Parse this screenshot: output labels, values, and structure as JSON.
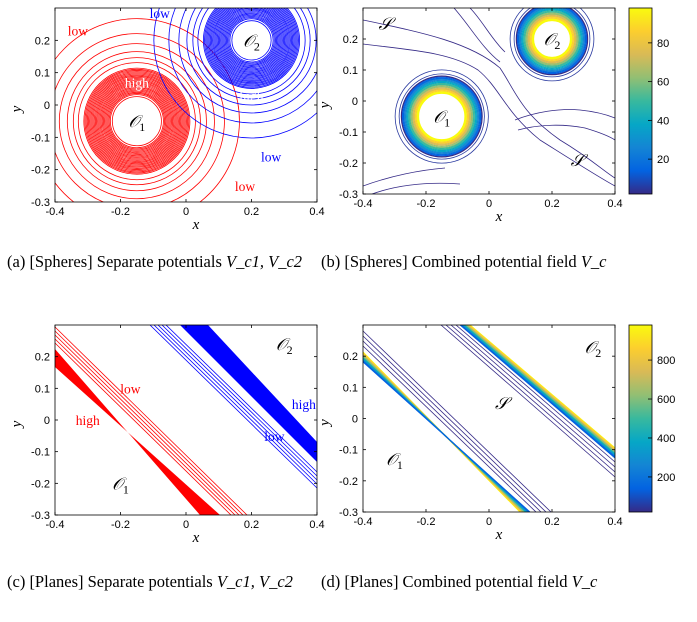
{
  "colors": {
    "red": "#ff0000",
    "blue": "#0000ff"
  },
  "captions": [
    {
      "id": "a",
      "text": "(a) [Spheres] Separate potentials ",
      "math": "V_c1, V_c2"
    },
    {
      "id": "b",
      "text": "(b) [Spheres] Combined potential field ",
      "math": "V_c"
    },
    {
      "id": "c",
      "text": "(c) [Planes] Separate potentials ",
      "math": "V_c1, V_c2"
    },
    {
      "id": "d",
      "text": "(d) [Planes] Combined potential field ",
      "math": "V_c"
    }
  ],
  "chart_data": [
    {
      "id": "a",
      "type": "contour",
      "xlabel": "x",
      "ylabel": "y",
      "xlim": [
        -0.4,
        0.4
      ],
      "ylim": [
        -0.3,
        0.3
      ],
      "xticks": [
        "-0.4",
        "-0.2",
        "0",
        "0.2",
        "0.4"
      ],
      "yticks": [
        "0.2",
        "0.1",
        "0",
        "-0.1",
        "-0.2",
        "-0.3"
      ],
      "series": [
        {
          "name": "O1",
          "center": [
            -0.15,
            -0.05
          ],
          "radius": 0.075,
          "color": "red"
        },
        {
          "name": "O2",
          "center": [
            0.2,
            0.2
          ],
          "radius": 0.06,
          "color": "blue"
        }
      ],
      "annotations": [
        {
          "text": "low",
          "x": -0.33,
          "y": 0.23,
          "color": "red"
        },
        {
          "text": "high",
          "x": -0.15,
          "y": 0.07,
          "color": "white"
        },
        {
          "text": "low",
          "x": 0.18,
          "y": -0.25,
          "color": "red"
        },
        {
          "text": "low",
          "x": -0.08,
          "y": 0.285,
          "color": "blue"
        },
        {
          "text": "high",
          "x": 0.2,
          "y": 0.03,
          "color": "white"
        },
        {
          "text": "low",
          "x": 0.26,
          "y": -0.16,
          "color": "blue"
        }
      ],
      "regions": [
        {
          "label": "O_1",
          "x": -0.15,
          "y": -0.05
        },
        {
          "label": "O_2",
          "x": 0.2,
          "y": 0.2
        }
      ]
    },
    {
      "id": "b",
      "type": "contour",
      "xlabel": "x",
      "ylabel": "y",
      "xlim": [
        -0.4,
        0.4
      ],
      "ylim": [
        -0.3,
        0.3
      ],
      "xticks": [
        "-0.4",
        "-0.2",
        "0",
        "0.2",
        "0.4"
      ],
      "yticks": [
        "0.2",
        "0.1",
        "0",
        "-0.1",
        "-0.2",
        "-0.3"
      ],
      "colorbar": {
        "ticks": [
          "80",
          "60",
          "40",
          "20"
        ],
        "values": [
          80,
          60,
          40,
          20
        ],
        "range": [
          2,
          98
        ]
      },
      "regions": [
        {
          "label": "O_1",
          "x": -0.15,
          "y": -0.05
        },
        {
          "label": "O_2",
          "x": 0.2,
          "y": 0.2
        },
        {
          "label": "S",
          "x": -0.33,
          "y": 0.25
        },
        {
          "label": "S",
          "x": 0.28,
          "y": -0.19
        }
      ]
    },
    {
      "id": "c",
      "type": "contour",
      "xlabel": "x",
      "ylabel": "y",
      "xlim": [
        -0.4,
        0.4
      ],
      "ylim": [
        -0.3,
        0.3
      ],
      "xticks": [
        "-0.4",
        "-0.2",
        "0",
        "0.2",
        "0.4"
      ],
      "yticks": [
        "0.2",
        "0.1",
        "0",
        "-0.1",
        "-0.2",
        "-0.3"
      ],
      "annotations": [
        {
          "text": "low",
          "x": -0.17,
          "y": 0.1,
          "color": "red"
        },
        {
          "text": "high",
          "x": -0.3,
          "y": 0.0,
          "color": "red"
        },
        {
          "text": "high",
          "x": 0.36,
          "y": 0.05,
          "color": "blue"
        },
        {
          "text": "low",
          "x": 0.27,
          "y": -0.05,
          "color": "blue"
        }
      ],
      "regions": [
        {
          "label": "O_1",
          "x": -0.2,
          "y": -0.2
        },
        {
          "label": "O_2",
          "x": 0.3,
          "y": 0.24
        }
      ]
    },
    {
      "id": "d",
      "type": "contour",
      "xlabel": "x",
      "ylabel": "y",
      "xlim": [
        -0.4,
        0.4
      ],
      "ylim": [
        -0.3,
        0.3
      ],
      "xticks": [
        "-0.4",
        "-0.2",
        "0",
        "0.2",
        "0.4"
      ],
      "yticks": [
        "0.2",
        "0.1",
        "0",
        "-0.1",
        "-0.2",
        "-0.3"
      ],
      "colorbar": {
        "ticks": [
          "800",
          "600",
          "400",
          "200"
        ],
        "values": [
          800,
          600,
          400,
          200
        ],
        "range": [
          20,
          980
        ]
      },
      "regions": [
        {
          "label": "O_1",
          "x": -0.3,
          "y": -0.13
        },
        {
          "label": "O_2",
          "x": 0.33,
          "y": 0.23
        },
        {
          "label": "S",
          "x": 0.04,
          "y": 0.05
        }
      ]
    }
  ]
}
